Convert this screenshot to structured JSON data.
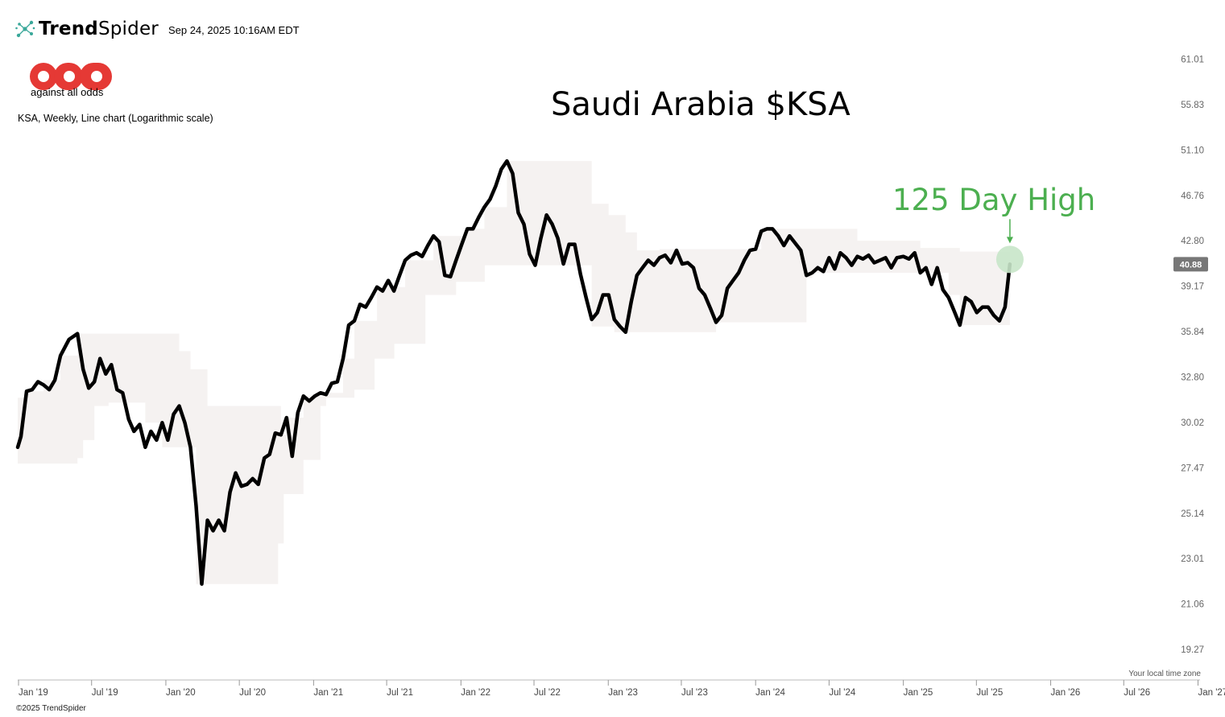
{
  "header": {
    "brand_part1": "Trend",
    "brand_part2": "Spider",
    "timestamp": "Sep 24, 2025 10:16AM EDT"
  },
  "logo": {
    "tagline": "against all odds",
    "color": "#e53935"
  },
  "chart_subtitle": "KSA, Weekly, Line chart (Logarithmic scale)",
  "footer": {
    "timezone_note": "Your local time zone",
    "copyright": "©2025 TrendSpider"
  },
  "annotation": {
    "text": "125 Day High",
    "color": "#4caf50"
  },
  "colors": {
    "line": "#000000",
    "band": "#f5f2f1",
    "marker": "#c8e6c9",
    "badge": "#777777"
  },
  "chart_data": {
    "type": "line",
    "title": "Saudi Arabia $KSA",
    "scale": "log",
    "ylim": [
      18.3,
      64.3
    ],
    "xlim": [
      "2018-12-30",
      "2027-01-06"
    ],
    "y_ticks": [
      "61.01",
      "55.83",
      "51.10",
      "46.76",
      "42.80",
      "39.17",
      "35.84",
      "32.80",
      "30.02",
      "27.47",
      "25.14",
      "23.01",
      "21.06",
      "19.27"
    ],
    "x_ticks": [
      {
        "label": "Jan '19",
        "date": "2019-01-01"
      },
      {
        "label": "Jul '19",
        "date": "2019-07-01"
      },
      {
        "label": "Jan '20",
        "date": "2020-01-01"
      },
      {
        "label": "Jul '20",
        "date": "2020-07-01"
      },
      {
        "label": "Jan '21",
        "date": "2021-01-01"
      },
      {
        "label": "Jul '21",
        "date": "2021-07-01"
      },
      {
        "label": "Jan '22",
        "date": "2022-01-01"
      },
      {
        "label": "Jul '22",
        "date": "2022-07-01"
      },
      {
        "label": "Jan '23",
        "date": "2023-01-01"
      },
      {
        "label": "Jul '23",
        "date": "2023-07-01"
      },
      {
        "label": "Jan '24",
        "date": "2024-01-01"
      },
      {
        "label": "Jul '24",
        "date": "2024-07-01"
      },
      {
        "label": "Jan '25",
        "date": "2025-01-01"
      },
      {
        "label": "Jul '25",
        "date": "2025-07-01"
      },
      {
        "label": "Jan '26",
        "date": "2026-01-01"
      },
      {
        "label": "Jul '26",
        "date": "2026-07-01"
      },
      {
        "label": "Jan '27",
        "date": "2027-01-01"
      }
    ],
    "last_value": "40.88",
    "series": [
      {
        "data": [
          [
            "2018-12-30",
            28.6
          ],
          [
            "2019-01-07",
            29.2
          ],
          [
            "2019-01-21",
            31.9
          ],
          [
            "2019-02-04",
            32.0
          ],
          [
            "2019-02-18",
            32.5
          ],
          [
            "2019-03-04",
            32.3
          ],
          [
            "2019-03-18",
            32.0
          ],
          [
            "2019-04-01",
            32.6
          ],
          [
            "2019-04-15",
            34.2
          ],
          [
            "2019-05-06",
            35.3
          ],
          [
            "2019-05-27",
            35.7
          ],
          [
            "2019-06-10",
            33.3
          ],
          [
            "2019-06-24",
            32.1
          ],
          [
            "2019-07-08",
            32.5
          ],
          [
            "2019-07-22",
            34.0
          ],
          [
            "2019-08-05",
            33.0
          ],
          [
            "2019-08-19",
            33.6
          ],
          [
            "2019-09-02",
            32.0
          ],
          [
            "2019-09-16",
            31.8
          ],
          [
            "2019-10-01",
            30.2
          ],
          [
            "2019-10-14",
            29.5
          ],
          [
            "2019-10-28",
            29.9
          ],
          [
            "2019-11-11",
            28.6
          ],
          [
            "2019-11-25",
            29.5
          ],
          [
            "2019-12-09",
            29.0
          ],
          [
            "2019-12-23",
            30.0
          ],
          [
            "2020-01-06",
            29.0
          ],
          [
            "2020-01-20",
            30.5
          ],
          [
            "2020-02-03",
            31.0
          ],
          [
            "2020-02-17",
            30.0
          ],
          [
            "2020-03-02",
            28.6
          ],
          [
            "2020-03-16",
            25.5
          ],
          [
            "2020-03-30",
            21.9
          ],
          [
            "2020-04-13",
            24.8
          ],
          [
            "2020-04-27",
            24.3
          ],
          [
            "2020-05-11",
            24.8
          ],
          [
            "2020-05-25",
            24.3
          ],
          [
            "2020-06-08",
            26.2
          ],
          [
            "2020-06-22",
            27.2
          ],
          [
            "2020-07-06",
            26.5
          ],
          [
            "2020-07-20",
            26.6
          ],
          [
            "2020-08-03",
            26.9
          ],
          [
            "2020-08-17",
            26.6
          ],
          [
            "2020-09-01",
            28.0
          ],
          [
            "2020-09-14",
            28.2
          ],
          [
            "2020-09-28",
            29.4
          ],
          [
            "2020-10-12",
            29.3
          ],
          [
            "2020-10-26",
            30.3
          ],
          [
            "2020-11-09",
            28.1
          ],
          [
            "2020-11-23",
            30.6
          ],
          [
            "2020-12-07",
            31.6
          ],
          [
            "2020-12-21",
            31.3
          ],
          [
            "2021-01-04",
            31.6
          ],
          [
            "2021-01-18",
            31.8
          ],
          [
            "2021-02-01",
            31.7
          ],
          [
            "2021-02-15",
            32.4
          ],
          [
            "2021-03-01",
            32.5
          ],
          [
            "2021-03-15",
            34.0
          ],
          [
            "2021-03-29",
            36.3
          ],
          [
            "2021-04-12",
            36.6
          ],
          [
            "2021-04-26",
            37.8
          ],
          [
            "2021-05-10",
            37.6
          ],
          [
            "2021-05-24",
            38.3
          ],
          [
            "2021-06-07",
            39.1
          ],
          [
            "2021-06-21",
            38.8
          ],
          [
            "2021-07-05",
            39.6
          ],
          [
            "2021-07-19",
            38.8
          ],
          [
            "2021-08-02",
            40.0
          ],
          [
            "2021-08-16",
            41.2
          ],
          [
            "2021-08-30",
            41.6
          ],
          [
            "2021-09-13",
            41.8
          ],
          [
            "2021-09-27",
            41.5
          ],
          [
            "2021-10-11",
            42.4
          ],
          [
            "2021-10-25",
            43.2
          ],
          [
            "2021-11-08",
            42.7
          ],
          [
            "2021-11-22",
            40.0
          ],
          [
            "2021-12-06",
            39.9
          ],
          [
            "2021-12-20",
            41.2
          ],
          [
            "2022-01-03",
            42.5
          ],
          [
            "2022-01-17",
            43.8
          ],
          [
            "2022-01-31",
            43.8
          ],
          [
            "2022-02-14",
            44.8
          ],
          [
            "2022-02-28",
            45.7
          ],
          [
            "2022-03-14",
            46.4
          ],
          [
            "2022-03-28",
            47.6
          ],
          [
            "2022-04-11",
            49.2
          ],
          [
            "2022-04-25",
            50.0
          ],
          [
            "2022-05-09",
            48.8
          ],
          [
            "2022-05-23",
            45.2
          ],
          [
            "2022-06-06",
            44.2
          ],
          [
            "2022-06-20",
            41.7
          ],
          [
            "2022-07-04",
            40.8
          ],
          [
            "2022-07-18",
            43.0
          ],
          [
            "2022-08-01",
            45.0
          ],
          [
            "2022-08-15",
            44.2
          ],
          [
            "2022-08-29",
            43.0
          ],
          [
            "2022-09-12",
            40.9
          ],
          [
            "2022-09-26",
            42.5
          ],
          [
            "2022-10-10",
            42.5
          ],
          [
            "2022-10-24",
            40.1
          ],
          [
            "2022-11-07",
            38.3
          ],
          [
            "2022-11-21",
            36.7
          ],
          [
            "2022-12-05",
            37.2
          ],
          [
            "2022-12-19",
            38.5
          ],
          [
            "2023-01-02",
            38.5
          ],
          [
            "2023-01-16",
            36.7
          ],
          [
            "2023-01-30",
            36.2
          ],
          [
            "2023-02-13",
            35.8
          ],
          [
            "2023-02-27",
            38.0
          ],
          [
            "2023-03-13",
            40.0
          ],
          [
            "2023-03-27",
            40.6
          ],
          [
            "2023-04-10",
            41.2
          ],
          [
            "2023-04-24",
            40.8
          ],
          [
            "2023-05-08",
            41.4
          ],
          [
            "2023-05-22",
            41.6
          ],
          [
            "2023-06-05",
            41.0
          ],
          [
            "2023-06-19",
            42.0
          ],
          [
            "2023-07-03",
            40.9
          ],
          [
            "2023-07-17",
            41.0
          ],
          [
            "2023-07-31",
            40.6
          ],
          [
            "2023-08-14",
            39.0
          ],
          [
            "2023-08-28",
            38.5
          ],
          [
            "2023-09-11",
            37.5
          ],
          [
            "2023-09-25",
            36.5
          ],
          [
            "2023-10-09",
            37.0
          ],
          [
            "2023-10-23",
            39.0
          ],
          [
            "2023-11-06",
            39.6
          ],
          [
            "2023-11-20",
            40.2
          ],
          [
            "2023-12-04",
            41.2
          ],
          [
            "2023-12-18",
            42.0
          ],
          [
            "2024-01-01",
            42.1
          ],
          [
            "2024-01-15",
            43.6
          ],
          [
            "2024-01-29",
            43.8
          ],
          [
            "2024-02-12",
            43.8
          ],
          [
            "2024-02-26",
            43.2
          ],
          [
            "2024-03-11",
            42.4
          ],
          [
            "2024-03-25",
            43.2
          ],
          [
            "2024-04-08",
            42.6
          ],
          [
            "2024-04-22",
            42.0
          ],
          [
            "2024-05-06",
            40.0
          ],
          [
            "2024-05-20",
            40.2
          ],
          [
            "2024-06-03",
            40.6
          ],
          [
            "2024-06-17",
            40.3
          ],
          [
            "2024-07-01",
            41.4
          ],
          [
            "2024-07-15",
            40.5
          ],
          [
            "2024-07-29",
            41.8
          ],
          [
            "2024-08-12",
            41.4
          ],
          [
            "2024-08-26",
            40.8
          ],
          [
            "2024-09-09",
            41.5
          ],
          [
            "2024-09-23",
            41.3
          ],
          [
            "2024-10-07",
            41.6
          ],
          [
            "2024-10-21",
            41.0
          ],
          [
            "2024-11-04",
            41.2
          ],
          [
            "2024-11-18",
            41.4
          ],
          [
            "2024-12-02",
            40.6
          ],
          [
            "2024-12-16",
            41.4
          ],
          [
            "2025-01-01",
            41.5
          ],
          [
            "2025-01-15",
            41.3
          ],
          [
            "2025-01-29",
            41.8
          ],
          [
            "2025-02-12",
            40.2
          ],
          [
            "2025-02-26",
            40.6
          ],
          [
            "2025-03-12",
            39.3
          ],
          [
            "2025-03-26",
            40.6
          ],
          [
            "2025-04-09",
            38.9
          ],
          [
            "2025-04-23",
            38.3
          ],
          [
            "2025-05-07",
            37.3
          ],
          [
            "2025-05-21",
            36.3
          ],
          [
            "2025-06-04",
            38.3
          ],
          [
            "2025-06-18",
            38.0
          ],
          [
            "2025-07-02",
            37.2
          ],
          [
            "2025-07-16",
            37.6
          ],
          [
            "2025-07-30",
            37.6
          ],
          [
            "2025-08-13",
            37.0
          ],
          [
            "2025-08-27",
            36.6
          ],
          [
            "2025-09-10",
            37.6
          ],
          [
            "2025-09-22",
            40.88
          ]
        ]
      }
    ],
    "band_125_day_range": {
      "lower": [
        [
          "2018-12-30",
          27.7
        ],
        [
          "2019-04-15",
          27.7
        ],
        [
          "2019-05-27",
          28.0
        ],
        [
          "2019-06-10",
          29.0
        ],
        [
          "2019-07-08",
          31.0
        ],
        [
          "2019-08-12",
          31.2
        ],
        [
          "2019-11-11",
          30.0
        ],
        [
          "2019-12-23",
          28.6
        ],
        [
          "2020-03-16",
          21.9
        ],
        [
          "2020-09-14",
          21.9
        ],
        [
          "2020-10-05",
          23.7
        ],
        [
          "2020-10-19",
          26.1
        ],
        [
          "2020-12-07",
          27.9
        ],
        [
          "2021-01-18",
          31.0
        ],
        [
          "2021-02-01",
          31.5
        ],
        [
          "2021-03-01",
          31.5
        ],
        [
          "2021-04-12",
          32.0
        ],
        [
          "2021-06-01",
          34.0
        ],
        [
          "2021-07-20",
          35.0
        ],
        [
          "2021-10-05",
          38.5
        ],
        [
          "2021-11-22",
          38.5
        ],
        [
          "2021-12-20",
          39.5
        ],
        [
          "2022-01-20",
          39.5
        ],
        [
          "2022-03-01",
          40.8
        ],
        [
          "2022-08-01",
          40.8
        ],
        [
          "2022-09-12",
          40.8
        ],
        [
          "2022-11-21",
          36.2
        ],
        [
          "2023-01-16",
          35.8
        ],
        [
          "2023-08-28",
          35.8
        ],
        [
          "2023-09-25",
          36.5
        ],
        [
          "2024-03-25",
          36.5
        ],
        [
          "2024-05-06",
          39.8
        ],
        [
          "2024-05-20",
          40.2
        ],
        [
          "2025-02-12",
          40.2
        ],
        [
          "2025-04-23",
          38.5
        ],
        [
          "2025-05-21",
          36.3
        ],
        [
          "2025-09-22",
          36.3
        ]
      ],
      "upper": [
        [
          "2018-12-30",
          31.5
        ],
        [
          "2019-01-21",
          31.9
        ],
        [
          "2019-03-04",
          32.6
        ],
        [
          "2019-04-15",
          34.2
        ],
        [
          "2019-05-27",
          35.7
        ],
        [
          "2019-12-09",
          35.7
        ],
        [
          "2020-02-03",
          34.5
        ],
        [
          "2020-03-02",
          33.3
        ],
        [
          "2020-04-13",
          31.0
        ],
        [
          "2020-08-17",
          31.0
        ],
        [
          "2020-10-12",
          29.3
        ],
        [
          "2020-10-26",
          30.3
        ],
        [
          "2020-12-07",
          31.6
        ],
        [
          "2021-02-01",
          31.8
        ],
        [
          "2021-03-15",
          34.0
        ],
        [
          "2021-04-12",
          36.6
        ],
        [
          "2021-06-07",
          39.1
        ],
        [
          "2021-08-16",
          41.2
        ],
        [
          "2021-10-25",
          43.2
        ],
        [
          "2022-01-17",
          43.8
        ],
        [
          "2022-02-28",
          45.7
        ],
        [
          "2022-04-25",
          50.0
        ],
        [
          "2022-10-10",
          50.0
        ],
        [
          "2022-11-21",
          46.0
        ],
        [
          "2023-01-02",
          45.0
        ],
        [
          "2023-02-13",
          43.5
        ],
        [
          "2023-03-13",
          42.0
        ],
        [
          "2023-05-08",
          42.1
        ],
        [
          "2023-10-09",
          42.1
        ],
        [
          "2023-11-20",
          42.1
        ],
        [
          "2024-01-15",
          43.8
        ],
        [
          "2024-06-01",
          43.8
        ],
        [
          "2024-09-09",
          42.8
        ],
        [
          "2025-02-12",
          42.2
        ],
        [
          "2025-05-21",
          41.9
        ],
        [
          "2025-09-22",
          41.9
        ]
      ]
    }
  }
}
